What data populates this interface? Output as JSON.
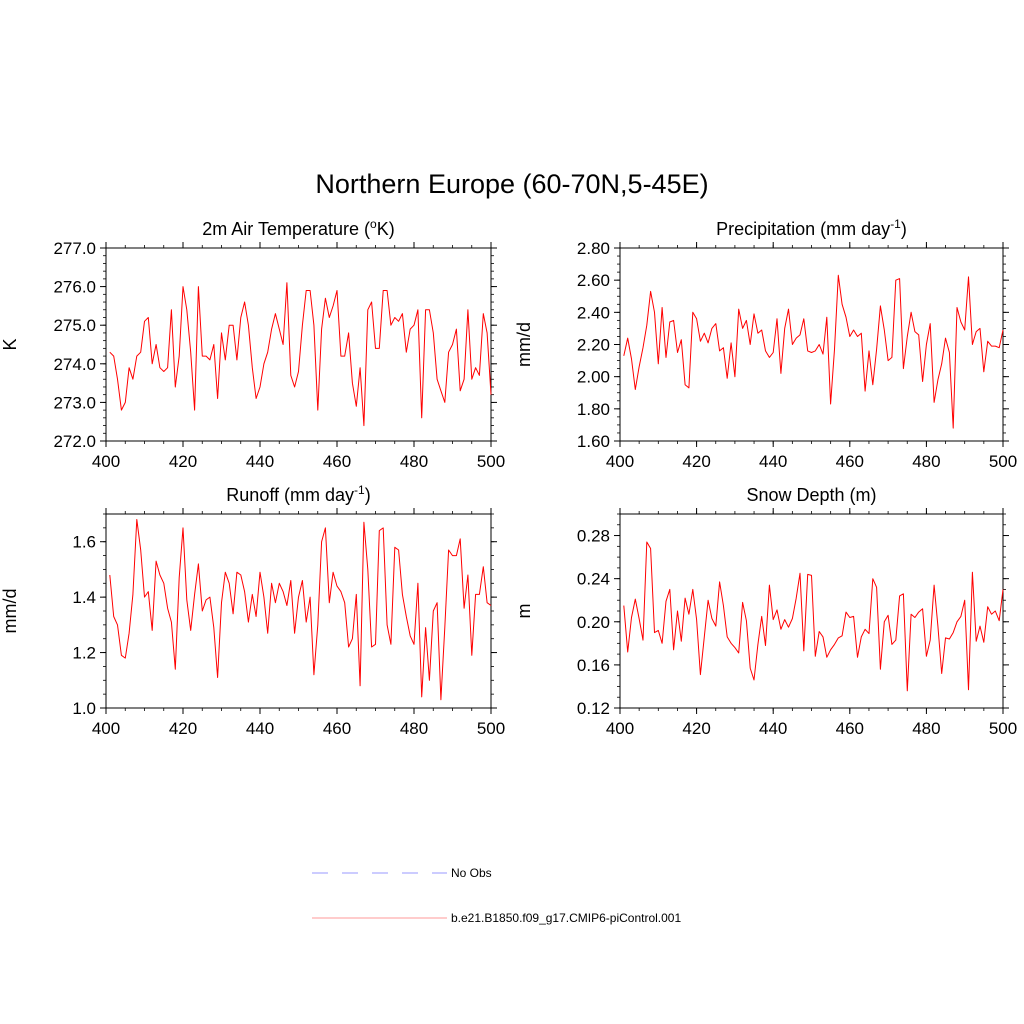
{
  "title": "Northern Europe (60-70N,5-45E)",
  "legend": {
    "no_obs_label": "No Obs",
    "no_obs_color": "#9999ff",
    "model_label": "b.e21.B1850.f09_g17.CMIP6-piControl.001",
    "model_color": "#ff9999"
  },
  "line_color": "#ff0000",
  "chart_data": [
    {
      "type": "line",
      "title_main": "2m Air Temperature (",
      "title_sup": "o",
      "title_tail": "K)",
      "ylabel": "K",
      "xlim": [
        400,
        500
      ],
      "ylim": [
        272.0,
        277.0
      ],
      "xticks": [
        400,
        420,
        440,
        460,
        480,
        500
      ],
      "xtick_labels": [
        "400",
        "420",
        "440",
        "460",
        "480",
        "500"
      ],
      "yticks": [
        272.0,
        273.0,
        274.0,
        275.0,
        276.0,
        277.0
      ],
      "ytick_labels": [
        "272.0",
        "273.0",
        "274.0",
        "275.0",
        "276.0",
        "277.0"
      ],
      "yminor": 0.2,
      "x": [
        401,
        402,
        403,
        404,
        405,
        406,
        407,
        408,
        409,
        410,
        411,
        412,
        413,
        414,
        415,
        416,
        417,
        418,
        419,
        420,
        421,
        422,
        423,
        424,
        425,
        426,
        427,
        428,
        429,
        430,
        431,
        432,
        433,
        434,
        435,
        436,
        437,
        438,
        439,
        440,
        441,
        442,
        443,
        444,
        445,
        446,
        447,
        448,
        449,
        450,
        451,
        452,
        453,
        454,
        455,
        456,
        457,
        458,
        459,
        460,
        461,
        462,
        463,
        464,
        465,
        466,
        467,
        468,
        469,
        470,
        471,
        472,
        473,
        474,
        475,
        476,
        477,
        478,
        479,
        480,
        481,
        482,
        483,
        484,
        485,
        486,
        487,
        488,
        489,
        490,
        491,
        492,
        493,
        494,
        495,
        496,
        497,
        498,
        499,
        500
      ],
      "values": [
        274.3,
        274.2,
        273.6,
        272.8,
        273.0,
        273.9,
        273.6,
        274.2,
        274.3,
        275.1,
        275.2,
        274.0,
        274.5,
        273.9,
        273.8,
        273.9,
        275.4,
        273.4,
        274.2,
        276.0,
        275.4,
        274.3,
        272.8,
        276.0,
        274.2,
        274.2,
        274.1,
        274.5,
        273.1,
        274.8,
        274.1,
        275.0,
        275.0,
        274.1,
        275.2,
        275.6,
        275.0,
        273.9,
        273.1,
        273.4,
        274.0,
        274.3,
        274.9,
        275.3,
        274.9,
        274.5,
        276.1,
        273.7,
        273.4,
        273.8,
        275.0,
        275.9,
        275.9,
        275.0,
        272.8,
        274.9,
        275.7,
        275.2,
        275.5,
        275.9,
        274.2,
        274.2,
        274.8,
        273.5,
        272.9,
        273.9,
        272.4,
        275.4,
        275.6,
        274.4,
        274.4,
        275.9,
        275.9,
        275.0,
        275.2,
        275.1,
        275.3,
        274.3,
        274.9,
        275.0,
        275.4,
        272.6,
        275.4,
        275.4,
        274.8,
        273.6,
        273.3,
        273.0,
        274.3,
        274.5,
        274.9,
        273.3,
        273.6,
        275.4,
        273.6,
        273.9,
        273.7,
        275.3,
        274.8,
        273.2
      ]
    },
    {
      "type": "line",
      "title_main": "Precipitation (mm day",
      "title_sup": "-1",
      "title_tail": ")",
      "ylabel": "mm/d",
      "xlim": [
        400,
        500
      ],
      "ylim": [
        1.6,
        2.8
      ],
      "xticks": [
        400,
        420,
        440,
        460,
        480,
        500
      ],
      "xtick_labels": [
        "400",
        "420",
        "440",
        "460",
        "480",
        "500"
      ],
      "yticks": [
        1.6,
        1.8,
        2.0,
        2.2,
        2.4,
        2.6,
        2.8
      ],
      "ytick_labels": [
        "1.60",
        "1.80",
        "2.00",
        "2.20",
        "2.40",
        "2.60",
        "2.80"
      ],
      "yminor": 0.05,
      "x": [
        401,
        402,
        403,
        404,
        405,
        406,
        407,
        408,
        409,
        410,
        411,
        412,
        413,
        414,
        415,
        416,
        417,
        418,
        419,
        420,
        421,
        422,
        423,
        424,
        425,
        426,
        427,
        428,
        429,
        430,
        431,
        432,
        433,
        434,
        435,
        436,
        437,
        438,
        439,
        440,
        441,
        442,
        443,
        444,
        445,
        446,
        447,
        448,
        449,
        450,
        451,
        452,
        453,
        454,
        455,
        456,
        457,
        458,
        459,
        460,
        461,
        462,
        463,
        464,
        465,
        466,
        467,
        468,
        469,
        470,
        471,
        472,
        473,
        474,
        475,
        476,
        477,
        478,
        479,
        480,
        481,
        482,
        483,
        484,
        485,
        486,
        487,
        488,
        489,
        490,
        491,
        492,
        493,
        494,
        495,
        496,
        497,
        498,
        499,
        500
      ],
      "values": [
        2.13,
        2.24,
        2.11,
        1.92,
        2.06,
        2.18,
        2.32,
        2.53,
        2.4,
        2.08,
        2.43,
        2.12,
        2.34,
        2.35,
        2.15,
        2.23,
        1.95,
        1.93,
        2.4,
        2.36,
        2.22,
        2.27,
        2.21,
        2.3,
        2.33,
        2.16,
        2.18,
        1.99,
        2.21,
        2.0,
        2.42,
        2.3,
        2.35,
        2.2,
        2.39,
        2.27,
        2.29,
        2.16,
        2.12,
        2.15,
        2.36,
        2.02,
        2.3,
        2.42,
        2.2,
        2.24,
        2.26,
        2.36,
        2.16,
        2.15,
        2.16,
        2.2,
        2.14,
        2.37,
        1.83,
        2.17,
        2.63,
        2.45,
        2.37,
        2.25,
        2.29,
        2.25,
        2.27,
        1.91,
        2.16,
        1.95,
        2.17,
        2.44,
        2.29,
        2.1,
        2.12,
        2.6,
        2.61,
        2.05,
        2.25,
        2.4,
        2.28,
        2.26,
        1.97,
        2.2,
        2.33,
        1.84,
        1.98,
        2.08,
        2.24,
        2.15,
        1.68,
        2.43,
        2.34,
        2.29,
        2.62,
        2.2,
        2.28,
        2.3,
        2.03,
        2.22,
        2.19,
        2.19,
        2.18,
        2.29
      ]
    },
    {
      "type": "line",
      "title_main": "Runoff (mm day",
      "title_sup": "-1",
      "title_tail": ")",
      "ylabel": "mm/d",
      "xlim": [
        400,
        500
      ],
      "ylim": [
        1.0,
        1.7
      ],
      "xticks": [
        400,
        420,
        440,
        460,
        480,
        500
      ],
      "xtick_labels": [
        "400",
        "420",
        "440",
        "460",
        "480",
        "500"
      ],
      "yticks": [
        1.0,
        1.2,
        1.4,
        1.6
      ],
      "ytick_labels": [
        "1.0",
        "1.2",
        "1.4",
        "1.6"
      ],
      "yminor": 0.05,
      "x": [
        401,
        402,
        403,
        404,
        405,
        406,
        407,
        408,
        409,
        410,
        411,
        412,
        413,
        414,
        415,
        416,
        417,
        418,
        419,
        420,
        421,
        422,
        423,
        424,
        425,
        426,
        427,
        428,
        429,
        430,
        431,
        432,
        433,
        434,
        435,
        436,
        437,
        438,
        439,
        440,
        441,
        442,
        443,
        444,
        445,
        446,
        447,
        448,
        449,
        450,
        451,
        452,
        453,
        454,
        455,
        456,
        457,
        458,
        459,
        460,
        461,
        462,
        463,
        464,
        465,
        466,
        467,
        468,
        469,
        470,
        471,
        472,
        473,
        474,
        475,
        476,
        477,
        478,
        479,
        480,
        481,
        482,
        483,
        484,
        485,
        486,
        487,
        488,
        489,
        490,
        491,
        492,
        493,
        494,
        495,
        496,
        497,
        498,
        499,
        500
      ],
      "values": [
        1.48,
        1.33,
        1.3,
        1.19,
        1.18,
        1.27,
        1.41,
        1.68,
        1.57,
        1.4,
        1.42,
        1.28,
        1.53,
        1.48,
        1.45,
        1.36,
        1.31,
        1.14,
        1.47,
        1.65,
        1.39,
        1.28,
        1.41,
        1.52,
        1.35,
        1.39,
        1.4,
        1.29,
        1.11,
        1.38,
        1.49,
        1.45,
        1.34,
        1.49,
        1.48,
        1.42,
        1.31,
        1.41,
        1.33,
        1.49,
        1.4,
        1.27,
        1.45,
        1.38,
        1.45,
        1.42,
        1.37,
        1.46,
        1.27,
        1.4,
        1.46,
        1.31,
        1.4,
        1.12,
        1.3,
        1.6,
        1.65,
        1.38,
        1.49,
        1.44,
        1.42,
        1.38,
        1.22,
        1.25,
        1.41,
        1.08,
        1.67,
        1.5,
        1.22,
        1.23,
        1.64,
        1.65,
        1.3,
        1.23,
        1.58,
        1.57,
        1.41,
        1.33,
        1.26,
        1.23,
        1.45,
        1.04,
        1.29,
        1.1,
        1.35,
        1.38,
        1.03,
        1.29,
        1.57,
        1.55,
        1.55,
        1.61,
        1.36,
        1.48,
        1.19,
        1.41,
        1.41,
        1.51,
        1.38,
        1.37
      ]
    },
    {
      "type": "line",
      "title_main": "Snow Depth (m)",
      "title_sup": "",
      "title_tail": "",
      "ylabel": "m",
      "xlim": [
        400,
        500
      ],
      "ylim": [
        0.12,
        0.3
      ],
      "xticks": [
        400,
        420,
        440,
        460,
        480,
        500
      ],
      "xtick_labels": [
        "400",
        "420",
        "440",
        "460",
        "480",
        "500"
      ],
      "yticks": [
        0.12,
        0.16,
        0.2,
        0.24,
        0.28
      ],
      "ytick_labels": [
        "0.12",
        "0.16",
        "0.20",
        "0.24",
        "0.28"
      ],
      "yminor": 0.01,
      "x": [
        401,
        402,
        403,
        404,
        405,
        406,
        407,
        408,
        409,
        410,
        411,
        412,
        413,
        414,
        415,
        416,
        417,
        418,
        419,
        420,
        421,
        422,
        423,
        424,
        425,
        426,
        427,
        428,
        429,
        430,
        431,
        432,
        433,
        434,
        435,
        436,
        437,
        438,
        439,
        440,
        441,
        442,
        443,
        444,
        445,
        446,
        447,
        448,
        449,
        450,
        451,
        452,
        453,
        454,
        455,
        456,
        457,
        458,
        459,
        460,
        461,
        462,
        463,
        464,
        465,
        466,
        467,
        468,
        469,
        470,
        471,
        472,
        473,
        474,
        475,
        476,
        477,
        478,
        479,
        480,
        481,
        482,
        483,
        484,
        485,
        486,
        487,
        488,
        489,
        490,
        491,
        492,
        493,
        494,
        495,
        496,
        497,
        498,
        499,
        500
      ],
      "values": [
        0.215,
        0.172,
        0.204,
        0.221,
        0.203,
        0.183,
        0.274,
        0.268,
        0.19,
        0.192,
        0.18,
        0.219,
        0.23,
        0.174,
        0.21,
        0.182,
        0.222,
        0.207,
        0.23,
        0.202,
        0.151,
        0.186,
        0.22,
        0.203,
        0.196,
        0.237,
        0.215,
        0.186,
        0.18,
        0.176,
        0.171,
        0.218,
        0.201,
        0.157,
        0.146,
        0.179,
        0.205,
        0.178,
        0.234,
        0.202,
        0.211,
        0.193,
        0.202,
        0.195,
        0.203,
        0.222,
        0.245,
        0.173,
        0.244,
        0.243,
        0.168,
        0.191,
        0.186,
        0.167,
        0.174,
        0.179,
        0.185,
        0.187,
        0.209,
        0.204,
        0.205,
        0.167,
        0.186,
        0.193,
        0.189,
        0.24,
        0.232,
        0.156,
        0.2,
        0.206,
        0.179,
        0.183,
        0.224,
        0.226,
        0.136,
        0.207,
        0.204,
        0.209,
        0.212,
        0.168,
        0.183,
        0.234,
        0.196,
        0.152,
        0.185,
        0.184,
        0.19,
        0.2,
        0.205,
        0.22,
        0.137,
        0.246,
        0.182,
        0.196,
        0.181,
        0.214,
        0.207,
        0.21,
        0.201,
        0.23
      ]
    }
  ]
}
